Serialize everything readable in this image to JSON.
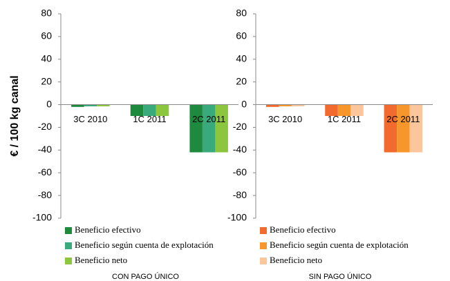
{
  "chart_data": [
    {
      "type": "bar",
      "title": "CON PAGO ÚNICO",
      "y_label": "€ / 100 kg canal",
      "categories": [
        "3C 2010",
        "1C 2011",
        "2C 2011"
      ],
      "series": [
        {
          "name": "Beneficio efectivo",
          "color": "#1e8a3e",
          "values": [
            -2,
            -10,
            -42
          ]
        },
        {
          "name": "Beneficio según cuenta de explotación",
          "color": "#3aa97c",
          "values": [
            -1.5,
            -10,
            -42
          ]
        },
        {
          "name": "Beneficio neto",
          "color": "#8cc63f",
          "values": [
            -1.5,
            -10,
            -42
          ]
        }
      ],
      "ylim": [
        -100,
        80
      ],
      "yticks": [
        -100,
        -80,
        -60,
        -40,
        -20,
        0,
        20,
        40,
        60,
        80
      ],
      "grid": false
    },
    {
      "type": "bar",
      "title": "SIN PAGO ÚNICO",
      "categories": [
        "3C 2010",
        "1C 2011",
        "2C 2011"
      ],
      "series": [
        {
          "name": "Beneficio efectivo",
          "color": "#f26a2e",
          "values": [
            -2,
            -10,
            -42
          ]
        },
        {
          "name": "Beneficio según cuenta de explotación",
          "color": "#f7962a",
          "values": [
            -1.5,
            -10,
            -42
          ]
        },
        {
          "name": "Beneficio neto",
          "color": "#fbc69c",
          "values": [
            -1.5,
            -10,
            -42
          ]
        }
      ],
      "ylim": [
        -100,
        80
      ],
      "yticks": [
        -100,
        -80,
        -60,
        -40,
        -20,
        0,
        20,
        40,
        60,
        80
      ],
      "grid": false
    }
  ]
}
